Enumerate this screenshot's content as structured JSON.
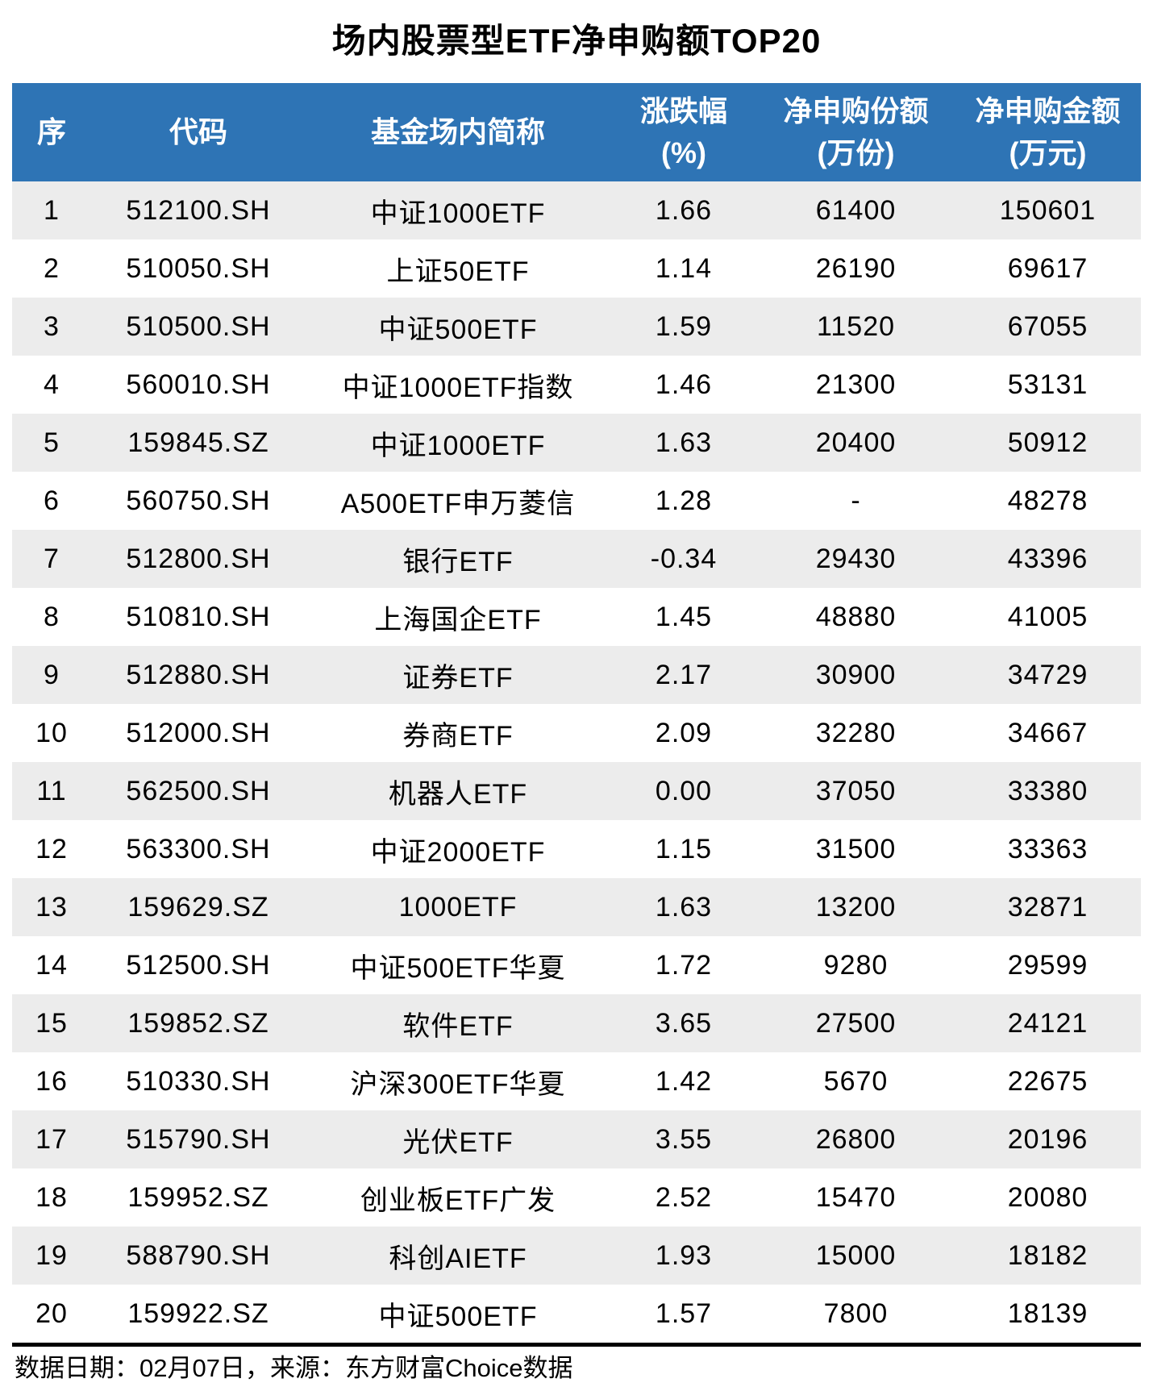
{
  "colors": {
    "header_bg": "#2E74B5",
    "header_text": "#FFFFFF",
    "row_alt_bg": "#ECECEC",
    "row_bg": "#FFFFFF",
    "text": "#000000",
    "rule": "#000000"
  },
  "chart_data": {
    "type": "table",
    "title": "场内股票型ETF净申购额TOP20",
    "columns": [
      {
        "label": "序",
        "sub": ""
      },
      {
        "label": "代码",
        "sub": ""
      },
      {
        "label": "基金场内简称",
        "sub": ""
      },
      {
        "label": "涨跌幅",
        "sub": "(%)"
      },
      {
        "label": "净申购份额",
        "sub": "(万份)"
      },
      {
        "label": "净申购金额",
        "sub": "(万元)"
      }
    ],
    "rows": [
      [
        "1",
        "512100.SH",
        "中证1000ETF",
        "1.66",
        "61400",
        "150601"
      ],
      [
        "2",
        "510050.SH",
        "上证50ETF",
        "1.14",
        "26190",
        "69617"
      ],
      [
        "3",
        "510500.SH",
        "中证500ETF",
        "1.59",
        "11520",
        "67055"
      ],
      [
        "4",
        "560010.SH",
        "中证1000ETF指数",
        "1.46",
        "21300",
        "53131"
      ],
      [
        "5",
        "159845.SZ",
        "中证1000ETF",
        "1.63",
        "20400",
        "50912"
      ],
      [
        "6",
        "560750.SH",
        "A500ETF申万菱信",
        "1.28",
        "-",
        "48278"
      ],
      [
        "7",
        "512800.SH",
        "银行ETF",
        "-0.34",
        "29430",
        "43396"
      ],
      [
        "8",
        "510810.SH",
        "上海国企ETF",
        "1.45",
        "48880",
        "41005"
      ],
      [
        "9",
        "512880.SH",
        "证券ETF",
        "2.17",
        "30900",
        "34729"
      ],
      [
        "10",
        "512000.SH",
        "券商ETF",
        "2.09",
        "32280",
        "34667"
      ],
      [
        "11",
        "562500.SH",
        "机器人ETF",
        "0.00",
        "37050",
        "33380"
      ],
      [
        "12",
        "563300.SH",
        "中证2000ETF",
        "1.15",
        "31500",
        "33363"
      ],
      [
        "13",
        "159629.SZ",
        "1000ETF",
        "1.63",
        "13200",
        "32871"
      ],
      [
        "14",
        "512500.SH",
        "中证500ETF华夏",
        "1.72",
        "9280",
        "29599"
      ],
      [
        "15",
        "159852.SZ",
        "软件ETF",
        "3.65",
        "27500",
        "24121"
      ],
      [
        "16",
        "510330.SH",
        "沪深300ETF华夏",
        "1.42",
        "5670",
        "22675"
      ],
      [
        "17",
        "515790.SH",
        "光伏ETF",
        "3.55",
        "26800",
        "20196"
      ],
      [
        "18",
        "159952.SZ",
        "创业板ETF广发",
        "2.52",
        "15470",
        "20080"
      ],
      [
        "19",
        "588790.SH",
        "科创AIETF",
        "1.93",
        "15000",
        "18182"
      ],
      [
        "20",
        "159922.SZ",
        "中证500ETF",
        "1.57",
        "7800",
        "18139"
      ]
    ],
    "footnote": "数据日期：02月07日，来源：东方财富Choice数据"
  }
}
